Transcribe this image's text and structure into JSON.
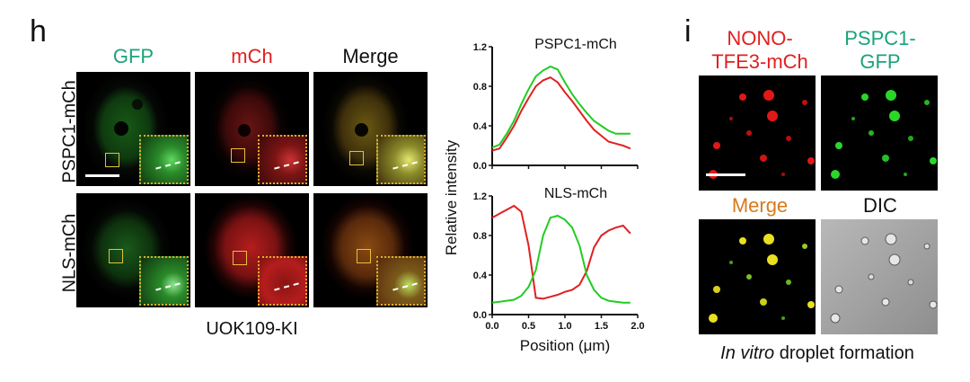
{
  "panel_h": {
    "letter": "h",
    "columns": [
      "GFP",
      "mCh",
      "Merge"
    ],
    "column_colors": [
      "#1aa37a",
      "#e02020",
      "#111111"
    ],
    "rows": [
      "PSPC1-mCh",
      "NLS-mCh"
    ],
    "caption": "UOK109-KI"
  },
  "chart_data": [
    {
      "type": "line",
      "title": "PSPC1-mCh",
      "xlabel": "Position (μm)",
      "ylabel": "Relative intensity",
      "xlim": [
        0.0,
        2.0
      ],
      "ylim": [
        0.0,
        1.2
      ],
      "xticks": [
        "0.0",
        "0.5",
        "1.0",
        "1.5",
        "2.0"
      ],
      "yticks": [
        "0.0",
        "0.4",
        "0.8",
        "1.2"
      ],
      "x": [
        0.0,
        0.1,
        0.2,
        0.3,
        0.4,
        0.5,
        0.6,
        0.7,
        0.8,
        0.9,
        1.0,
        1.1,
        1.2,
        1.3,
        1.4,
        1.5,
        1.6,
        1.7,
        1.8,
        1.9
      ],
      "series": [
        {
          "color": "#e02020",
          "values": [
            0.15,
            0.17,
            0.28,
            0.4,
            0.55,
            0.68,
            0.8,
            0.86,
            0.89,
            0.84,
            0.74,
            0.65,
            0.55,
            0.45,
            0.36,
            0.3,
            0.24,
            0.22,
            0.2,
            0.17
          ]
        },
        {
          "color": "#22cc22",
          "values": [
            0.18,
            0.21,
            0.32,
            0.45,
            0.62,
            0.77,
            0.9,
            0.96,
            1.0,
            0.97,
            0.84,
            0.72,
            0.62,
            0.53,
            0.45,
            0.4,
            0.35,
            0.32,
            0.32,
            0.32
          ]
        }
      ]
    },
    {
      "type": "line",
      "title": "NLS-mCh",
      "xlabel": "Position (μm)",
      "ylabel": "Relative intensity",
      "xlim": [
        0.0,
        2.0
      ],
      "ylim": [
        0.0,
        1.2
      ],
      "xticks": [
        "0.0",
        "0.5",
        "1.0",
        "1.5",
        "2.0"
      ],
      "yticks": [
        "0.0",
        "0.4",
        "0.8",
        "1.2"
      ],
      "x": [
        0.0,
        0.1,
        0.2,
        0.3,
        0.4,
        0.5,
        0.6,
        0.7,
        0.8,
        0.9,
        1.0,
        1.1,
        1.2,
        1.3,
        1.4,
        1.5,
        1.6,
        1.7,
        1.8,
        1.9
      ],
      "series": [
        {
          "color": "#e02020",
          "values": [
            0.98,
            1.02,
            1.06,
            1.1,
            1.04,
            0.7,
            0.17,
            0.16,
            0.18,
            0.2,
            0.23,
            0.25,
            0.3,
            0.44,
            0.68,
            0.8,
            0.85,
            0.88,
            0.9,
            0.82
          ]
        },
        {
          "color": "#22cc22",
          "values": [
            0.12,
            0.13,
            0.14,
            0.15,
            0.19,
            0.28,
            0.45,
            0.8,
            0.98,
            1.0,
            0.96,
            0.88,
            0.7,
            0.4,
            0.25,
            0.17,
            0.14,
            0.13,
            0.12,
            0.12
          ]
        }
      ]
    }
  ],
  "panel_i": {
    "letter": "i",
    "top_labels": [
      "NONO-\nTFE3-mCh",
      "PSPC1-\nGFP"
    ],
    "top_label_colors": [
      "#e02020",
      "#1aa37a"
    ],
    "bottom_labels": [
      "Merge",
      "DIC"
    ],
    "bottom_label_colors": [
      "#d87a1e",
      "#111111"
    ],
    "caption_italic": "In vitro",
    "caption_rest": " droplet formation"
  }
}
